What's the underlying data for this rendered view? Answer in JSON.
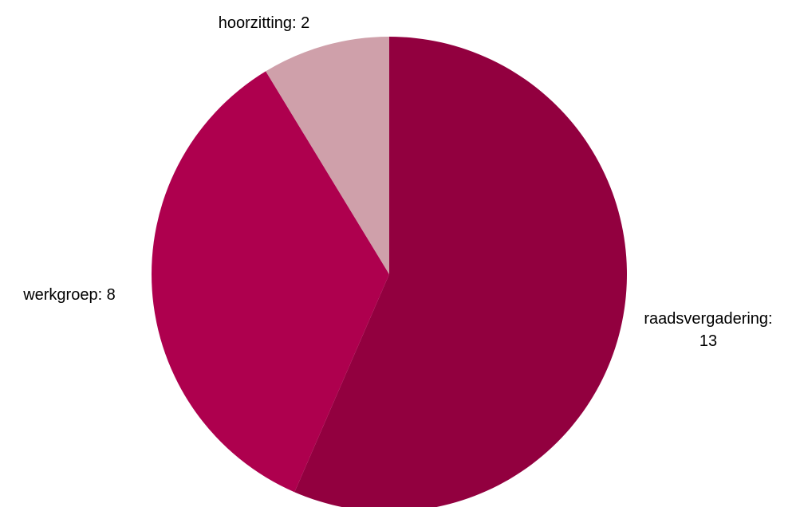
{
  "chart_data": {
    "type": "pie",
    "title": "",
    "start_angle_deg": 0,
    "direction": "clockwise",
    "slices": [
      {
        "label": "raadsvergadering",
        "value": 13,
        "label_text": [
          "raadsvergadering:",
          "13"
        ],
        "color": "#92003f"
      },
      {
        "label": "werkgroep",
        "value": 8,
        "label_text": [
          "werkgroep: 8"
        ],
        "color": "#ae004e"
      },
      {
        "label": "hoorzitting",
        "value": 2,
        "label_text": [
          "hoorzitting: 2"
        ],
        "color": "#cfa0aa"
      }
    ],
    "legend": "none"
  }
}
